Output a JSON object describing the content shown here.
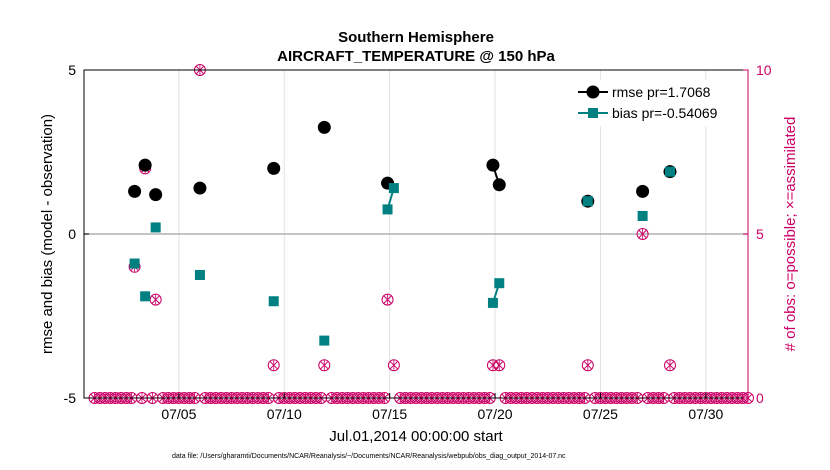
{
  "chart_data": {
    "type": "scatter",
    "title": "Southern Hemisphere",
    "subtitle": "AIRCRAFT_TEMPERATURE @ 150 hPa",
    "xlabel": "Jul.01,2014 00:00:00 start",
    "ylabel_left": "rmse and bias (model - observation)",
    "ylabel_right": "# of obs: o=possible; ×=assimilated",
    "footnote": "data file: /Users/gharamti/Documents/NCAR/Reanalysis/~/Documents/NCAR/Reanalysis/webpub/obs_diag_output_2014-07.nc",
    "xlim": [
      0.5,
      32
    ],
    "ylim_left": [
      -5,
      5
    ],
    "ylim_right": [
      0,
      10
    ],
    "x_ticks": [
      5,
      10,
      15,
      20,
      25,
      30
    ],
    "x_tick_labels": [
      "07/05",
      "07/10",
      "07/15",
      "07/20",
      "07/25",
      "07/30"
    ],
    "y_ticks_left": [
      -5,
      0,
      5
    ],
    "y_tick_labels_left": [
      "-5",
      "0",
      "5"
    ],
    "y_ticks_right": [
      0,
      5,
      10
    ],
    "y_tick_labels_right": [
      "0",
      "5",
      "10"
    ],
    "grid": true,
    "legend_position": "top-right",
    "colors": {
      "rmse": "#000000",
      "bias": "#008080",
      "obs": "#cc0066",
      "zero_line": "#b0b0b0",
      "grid": "#e2e2e2"
    },
    "series": [
      {
        "name": "rmse",
        "legend": "rmse pr=1.7068",
        "x": [
          2.9,
          3.4,
          3.9,
          6.0,
          9.5,
          11.9,
          14.9,
          19.9,
          20.2,
          24.4,
          27.0,
          28.3
        ],
        "y": [
          1.3,
          2.1,
          1.2,
          1.4,
          2.0,
          3.25,
          1.55,
          2.1,
          1.5,
          1.0,
          1.3,
          1.9
        ],
        "connect": [
          [
            7,
            8
          ]
        ]
      },
      {
        "name": "bias",
        "legend": "bias pr=-0.54069",
        "x": [
          2.9,
          3.4,
          3.9,
          6.0,
          9.5,
          11.9,
          14.9,
          15.2,
          19.9,
          20.2,
          24.4,
          27.0,
          28.3
        ],
        "y": [
          -0.9,
          -1.9,
          0.2,
          -1.25,
          -2.05,
          -3.25,
          0.75,
          1.4,
          -2.1,
          -1.5,
          1.0,
          0.55,
          1.9
        ],
        "connect": [
          [
            6,
            7
          ],
          [
            8,
            9
          ]
        ]
      }
    ],
    "obs_count": {
      "x": [
        2.9,
        3.4,
        3.9,
        6.0,
        9.5,
        11.9,
        14.9,
        15.2,
        19.9,
        20.2,
        24.4,
        27.0,
        28.3
      ],
      "y": [
        4,
        7,
        3,
        10,
        1,
        1,
        3,
        1,
        1,
        1,
        1,
        5,
        1
      ],
      "zero_from": 1,
      "zero_to": 32,
      "zero_step": 0.25
    }
  }
}
